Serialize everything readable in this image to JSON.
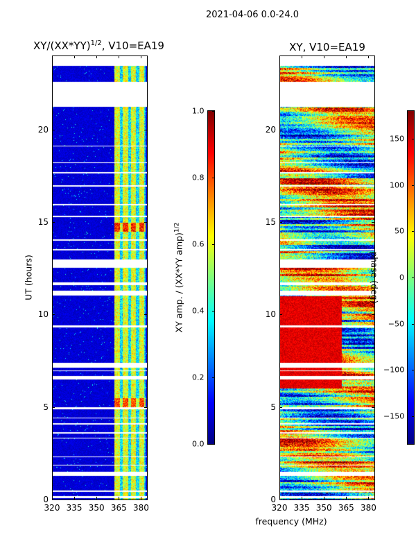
{
  "suptitle": "2021-04-06 0.0-24.0",
  "chart_data": [
    {
      "type": "heatmap",
      "title": "XY/(XX*YY)^1/2, V10=EA19",
      "title_main": "XY/(XX*YY)",
      "title_sup": "1/2",
      "title_tail": ", V10=EA19",
      "xlabel": "",
      "ylabel": "UT (hours)",
      "xlim": [
        320,
        384
      ],
      "ylim": [
        0,
        24
      ],
      "xticks": [
        320,
        335,
        350,
        365,
        380
      ],
      "yticks": [
        0,
        5,
        10,
        15,
        20
      ],
      "colorbar": {
        "label": "XY amp. / (XX*YY amp)",
        "label_sup": "1/2",
        "range": [
          0,
          1
        ],
        "ticks": [
          "0.0",
          "0.2",
          "0.4",
          "0.6",
          "0.8",
          "1.0"
        ],
        "cmap": "jet"
      },
      "description_values": {
        "background_level": 0.08,
        "active_band_mhz": [
          362,
          383
        ],
        "active_band_level": 0.55
      }
    },
    {
      "type": "heatmap",
      "title": "XY, V10=EA19",
      "xlabel": "frequency (MHz)",
      "ylabel": "",
      "xlim": [
        320,
        384
      ],
      "ylim": [
        0,
        24
      ],
      "xticks": [
        320,
        335,
        350,
        365,
        380
      ],
      "yticks": [
        0,
        5,
        10,
        15,
        20
      ],
      "colorbar": {
        "label": "phase (deg)",
        "range": [
          -180,
          180
        ],
        "ticks": [
          -150,
          -100,
          -50,
          0,
          50,
          100,
          150
        ],
        "cmap": "jet"
      }
    }
  ],
  "flagged_hours": [
    [
      0.1,
      0.2
    ],
    [
      0.45,
      0.5
    ],
    [
      1.3,
      1.5
    ],
    [
      1.85,
      1.9
    ],
    [
      2.3,
      2.35
    ],
    [
      3.3,
      3.35
    ],
    [
      3.6,
      3.65
    ],
    [
      4.05,
      4.15
    ],
    [
      4.4,
      4.45
    ],
    [
      4.9,
      5.0
    ],
    [
      6.5,
      6.7
    ],
    [
      6.95,
      7.0
    ],
    [
      7.15,
      7.4
    ],
    [
      9.3,
      9.45
    ],
    [
      11.05,
      11.3
    ],
    [
      11.6,
      11.75
    ],
    [
      12.55,
      13.0
    ],
    [
      13.5,
      13.55
    ],
    [
      14.0,
      14.1
    ],
    [
      15.3,
      15.35
    ],
    [
      15.9,
      16.0
    ],
    [
      16.95,
      17.0
    ],
    [
      17.65,
      17.7
    ],
    [
      18.2,
      18.25
    ],
    [
      19.1,
      19.15
    ],
    [
      21.25,
      22.6
    ],
    [
      23.45,
      24.0
    ]
  ],
  "colors": {
    "axis": "#000000"
  }
}
